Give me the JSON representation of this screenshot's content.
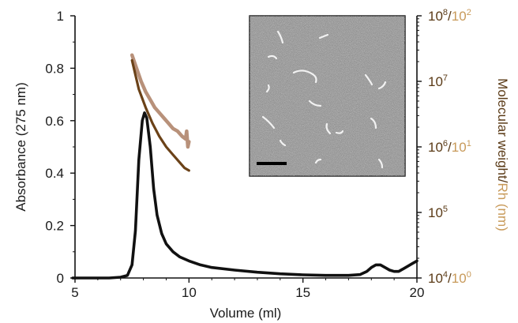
{
  "chart_data": {
    "type": "line",
    "xlabel": "Volume (ml)",
    "ylabel_left": "Absorbance (275 nm)",
    "ylabel_right_prefix": "Molecular weight/",
    "ylabel_right_suffix": "Rh (nm)",
    "xlim": [
      5,
      20
    ],
    "ylim_left": [
      0,
      1
    ],
    "x_ticks": [
      "5",
      "10",
      "15",
      "20"
    ],
    "y_left_ticks": [
      "0",
      "0.2",
      "0.4",
      "0.6",
      "0.8",
      "1"
    ],
    "y_right_scale": "log",
    "y_right_ticks": [
      {
        "mw_base": "10",
        "mw_exp": "4",
        "rh_base": "10",
        "rh_exp": "0"
      },
      {
        "mw_base": "10",
        "mw_exp": "5",
        "rh_base": "",
        "rh_exp": ""
      },
      {
        "mw_base": "10",
        "mw_exp": "6",
        "rh_base": "10",
        "rh_exp": "1"
      },
      {
        "mw_base": "10",
        "mw_exp": "7",
        "rh_base": "",
        "rh_exp": ""
      },
      {
        "mw_base": "10",
        "mw_exp": "8",
        "rh_base": "10",
        "rh_exp": "2"
      }
    ],
    "series": [
      {
        "role": "absorbance",
        "color": "#111111",
        "x": [
          4.9,
          5.5,
          6.5,
          7.0,
          7.3,
          7.5,
          7.65,
          7.8,
          7.95,
          8.05,
          8.15,
          8.3,
          8.45,
          8.6,
          8.8,
          9.0,
          9.3,
          9.6,
          10.0,
          10.5,
          11.0,
          12.0,
          13.0,
          14.0,
          15.0,
          16.0,
          17.0,
          17.5,
          17.8,
          18.0,
          18.2,
          18.4,
          18.6,
          18.8,
          19.0,
          19.2,
          19.4,
          19.6,
          19.8,
          20.0
        ],
        "y": [
          0.0,
          0.0,
          0.0,
          0.003,
          0.01,
          0.05,
          0.18,
          0.45,
          0.6,
          0.63,
          0.61,
          0.5,
          0.34,
          0.24,
          0.17,
          0.13,
          0.1,
          0.08,
          0.065,
          0.05,
          0.04,
          0.03,
          0.022,
          0.016,
          0.012,
          0.01,
          0.01,
          0.013,
          0.025,
          0.04,
          0.05,
          0.05,
          0.04,
          0.03,
          0.025,
          0.025,
          0.035,
          0.045,
          0.055,
          0.065
        ]
      },
      {
        "role": "molecular-weight",
        "color": "#6b4218",
        "x": [
          7.5,
          7.8,
          8.1,
          8.4,
          8.7,
          9.0,
          9.3,
          9.6,
          9.8,
          10.0
        ],
        "y": [
          0.83,
          0.72,
          0.65,
          0.59,
          0.54,
          0.5,
          0.47,
          0.44,
          0.42,
          0.41
        ]
      },
      {
        "role": "hydrodynamic-radius",
        "color": "#b8917a",
        "x": [
          7.5,
          7.7,
          7.9,
          8.1,
          8.3,
          8.5,
          8.7,
          8.9,
          9.1,
          9.3,
          9.5,
          9.7,
          9.85,
          9.9,
          9.95,
          10.0
        ],
        "y": [
          0.85,
          0.8,
          0.75,
          0.71,
          0.68,
          0.65,
          0.63,
          0.61,
          0.59,
          0.57,
          0.56,
          0.54,
          0.53,
          0.56,
          0.5,
          0.52
        ]
      }
    ],
    "inset": {
      "content": "electron micrograph",
      "scale_bar": true
    }
  }
}
